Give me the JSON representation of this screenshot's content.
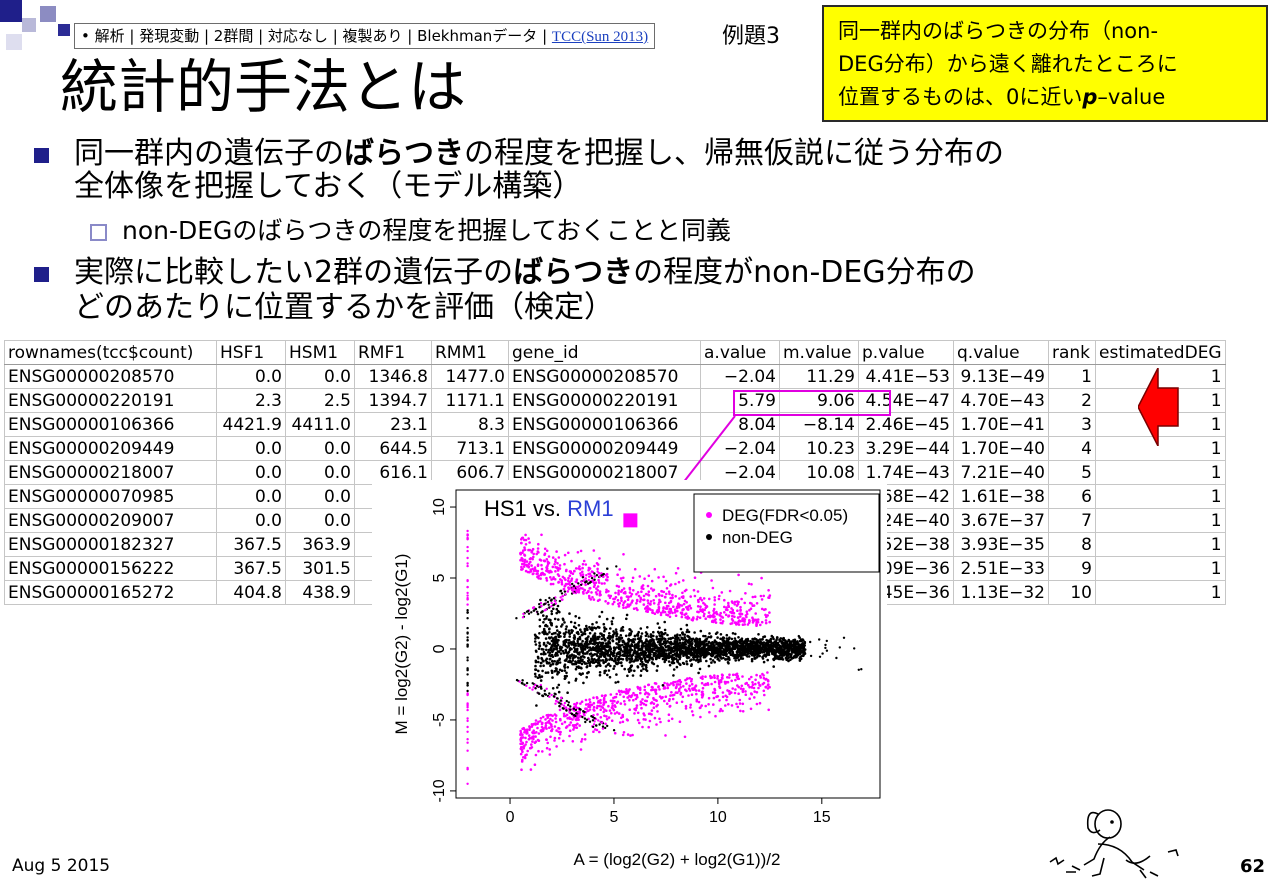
{
  "breadcrumb": {
    "text": "• 解析 | 発現変動 | 2群間 | 対応なし | 複製あり | Blekhmanデータ | ",
    "link": "TCC(Sun 2013)"
  },
  "example_label": "例題3",
  "callout": {
    "line1": "同一群内のばらつきの分布（non-",
    "line2": "DEG分布）から遠く離れたところに",
    "line3_pre": "位置するものは、0に近い",
    "line3_bold": "p",
    "line3_post": "–value"
  },
  "title": "統計的手法とは",
  "bullets": {
    "b1_pre": "同一群内の遺伝子の",
    "b1_bold": "ばらつき",
    "b1_post": "の程度を把握し、帰無仮説に従う分布の",
    "b1_line2": "全体像を把握しておく（モデル構築）",
    "sub1": "non-DEGのばらつきの程度を把握しておくことと同義",
    "b2_pre": "実際に比較したい2群の遺伝子の",
    "b2_bold": "ばらつき",
    "b2_post": "の程度がnon-DEG分布の",
    "b2_line2": "どのあたりに位置するかを評価（検定）"
  },
  "table": {
    "headers": [
      "rownames(tcc$count)",
      "HSF1",
      "HSM1",
      "RMF1",
      "RMM1",
      "gene_id",
      "a.value",
      "m.value",
      "p.value",
      "q.value",
      "rank",
      "estimatedDEG"
    ],
    "rows": [
      [
        "ENSG00000208570",
        "0.0",
        "0.0",
        "1346.8",
        "1477.0",
        "ENSG00000208570",
        "−2.04",
        "11.29",
        "4.41E−53",
        "9.13E−49",
        "1",
        "1"
      ],
      [
        "ENSG00000220191",
        "2.3",
        "2.5",
        "1394.7",
        "1171.1",
        "ENSG00000220191",
        "5.79",
        "9.06",
        "4.54E−47",
        "4.70E−43",
        "2",
        "1"
      ],
      [
        "ENSG00000106366",
        "4421.9",
        "4411.0",
        "23.1",
        "8.3",
        "ENSG00000106366",
        "8.04",
        "−8.14",
        "2.46E−45",
        "1.70E−41",
        "3",
        "1"
      ],
      [
        "ENSG00000209449",
        "0.0",
        "0.0",
        "644.5",
        "713.1",
        "ENSG00000209449",
        "−2.04",
        "10.23",
        "3.29E−44",
        "1.70E−40",
        "4",
        "1"
      ],
      [
        "ENSG00000218007",
        "0.0",
        "0.0",
        "616.1",
        "606.7",
        "ENSG00000218007",
        "−2.04",
        "10.08",
        "1.74E−43",
        "7.21E−40",
        "5",
        "1"
      ],
      [
        "ENSG00000070985",
        "0.0",
        "0.0",
        "",
        "",
        "",
        "",
        "",
        "4.68E−42",
        "1.61E−38",
        "6",
        "1"
      ],
      [
        "ENSG00000209007",
        "0.0",
        "0.0",
        "",
        "",
        "",
        "",
        "",
        "1.24E−40",
        "3.67E−37",
        "7",
        "1"
      ],
      [
        "ENSG00000182327",
        "367.5",
        "363.9",
        "",
        "",
        "",
        "",
        "",
        "1.52E−38",
        "3.93E−35",
        "8",
        "1"
      ],
      [
        "ENSG00000156222",
        "367.5",
        "301.5",
        "",
        "",
        "",
        "",
        "",
        "1.09E−36",
        "2.51E−33",
        "9",
        "1"
      ],
      [
        "ENSG00000165272",
        "404.8",
        "438.9",
        "",
        "",
        "",
        "",
        "",
        "5.45E−36",
        "1.13E−32",
        "10",
        "1"
      ]
    ]
  },
  "chart_data": {
    "type": "scatter",
    "title_prefix": "HS1 vs. ",
    "title_suffix": "RM1",
    "xlabel": "A = (log2(G2) + log2(G1))/2",
    "ylabel": "M = log2(G2) - log2(G1)",
    "xlim": [
      -2.6,
      17.8
    ],
    "ylim": [
      -10.5,
      11.2
    ],
    "xticks": [
      "0",
      "5",
      "10",
      "15"
    ],
    "yticks": [
      "-10",
      "-5",
      "0",
      "5",
      "10"
    ],
    "legend": [
      "DEG(FDR<0.05)",
      "non-DEG"
    ],
    "legend_position": "top-right",
    "highlight_point": {
      "x": 5.79,
      "y": 9.06
    },
    "colors": {
      "deg": "#ff00ff",
      "nondeg": "#000000",
      "title_accent": "#2b3fd6"
    }
  },
  "footer": {
    "date": "Aug 5 2015",
    "page": "62"
  },
  "colors": {
    "callout_bg": "#ffff00",
    "highlight": "#e000e0",
    "arrow": "#ff0000",
    "bullet": "#1f1f8a"
  }
}
